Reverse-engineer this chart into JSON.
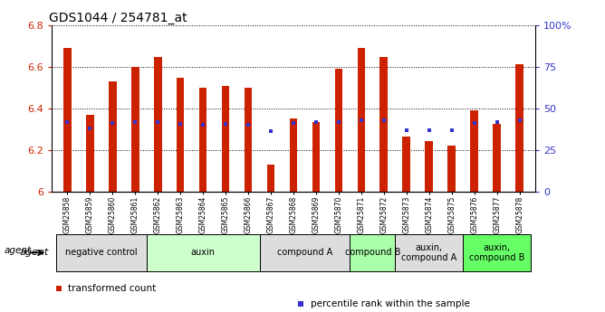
{
  "title": "GDS1044 / 254781_at",
  "samples": [
    "GSM25858",
    "GSM25859",
    "GSM25860",
    "GSM25861",
    "GSM25862",
    "GSM25863",
    "GSM25864",
    "GSM25865",
    "GSM25866",
    "GSM25867",
    "GSM25868",
    "GSM25869",
    "GSM25870",
    "GSM25871",
    "GSM25872",
    "GSM25873",
    "GSM25874",
    "GSM25875",
    "GSM25876",
    "GSM25877",
    "GSM25878"
  ],
  "bar_values": [
    6.69,
    6.37,
    6.53,
    6.6,
    6.645,
    6.545,
    6.5,
    6.51,
    6.5,
    6.13,
    6.35,
    6.335,
    6.59,
    6.69,
    6.645,
    6.265,
    6.245,
    6.22,
    6.39,
    6.325,
    6.61
  ],
  "percentile_values": [
    6.335,
    6.305,
    6.33,
    6.335,
    6.335,
    6.325,
    6.32,
    6.325,
    6.32,
    6.29,
    6.33,
    6.335,
    6.335,
    6.345,
    6.345,
    6.295,
    6.295,
    6.295,
    6.33,
    6.335,
    6.345
  ],
  "ymin": 6.0,
  "ymax": 6.8,
  "bar_color": "#cc2200",
  "percentile_color": "#3333cc",
  "groups": [
    {
      "label": "negative control",
      "start": 0,
      "end": 4,
      "color": "#dddddd"
    },
    {
      "label": "auxin",
      "start": 4,
      "end": 9,
      "color": "#ccffcc"
    },
    {
      "label": "compound A",
      "start": 9,
      "end": 13,
      "color": "#dddddd"
    },
    {
      "label": "compound B",
      "start": 13,
      "end": 15,
      "color": "#aaffaa"
    },
    {
      "label": "auxin,\ncompound A",
      "start": 15,
      "end": 18,
      "color": "#dddddd"
    },
    {
      "label": "auxin,\ncompound B",
      "start": 18,
      "end": 21,
      "color": "#66ff66"
    }
  ],
  "legend_items": [
    {
      "label": "transformed count",
      "color": "#cc2200",
      "marker": "s"
    },
    {
      "label": "percentile rank within the sample",
      "color": "#3333cc",
      "marker": "s"
    }
  ],
  "yticks_left": [
    6.0,
    6.2,
    6.4,
    6.6,
    6.8
  ],
  "ytick_labels_left": [
    "6",
    "6.2",
    "6.4",
    "6.6",
    "6.8"
  ],
  "yticks_right_pct": [
    0,
    25,
    50,
    75,
    100
  ],
  "yticks_right_labels": [
    "0",
    "25",
    "50",
    "75",
    "100%"
  ]
}
